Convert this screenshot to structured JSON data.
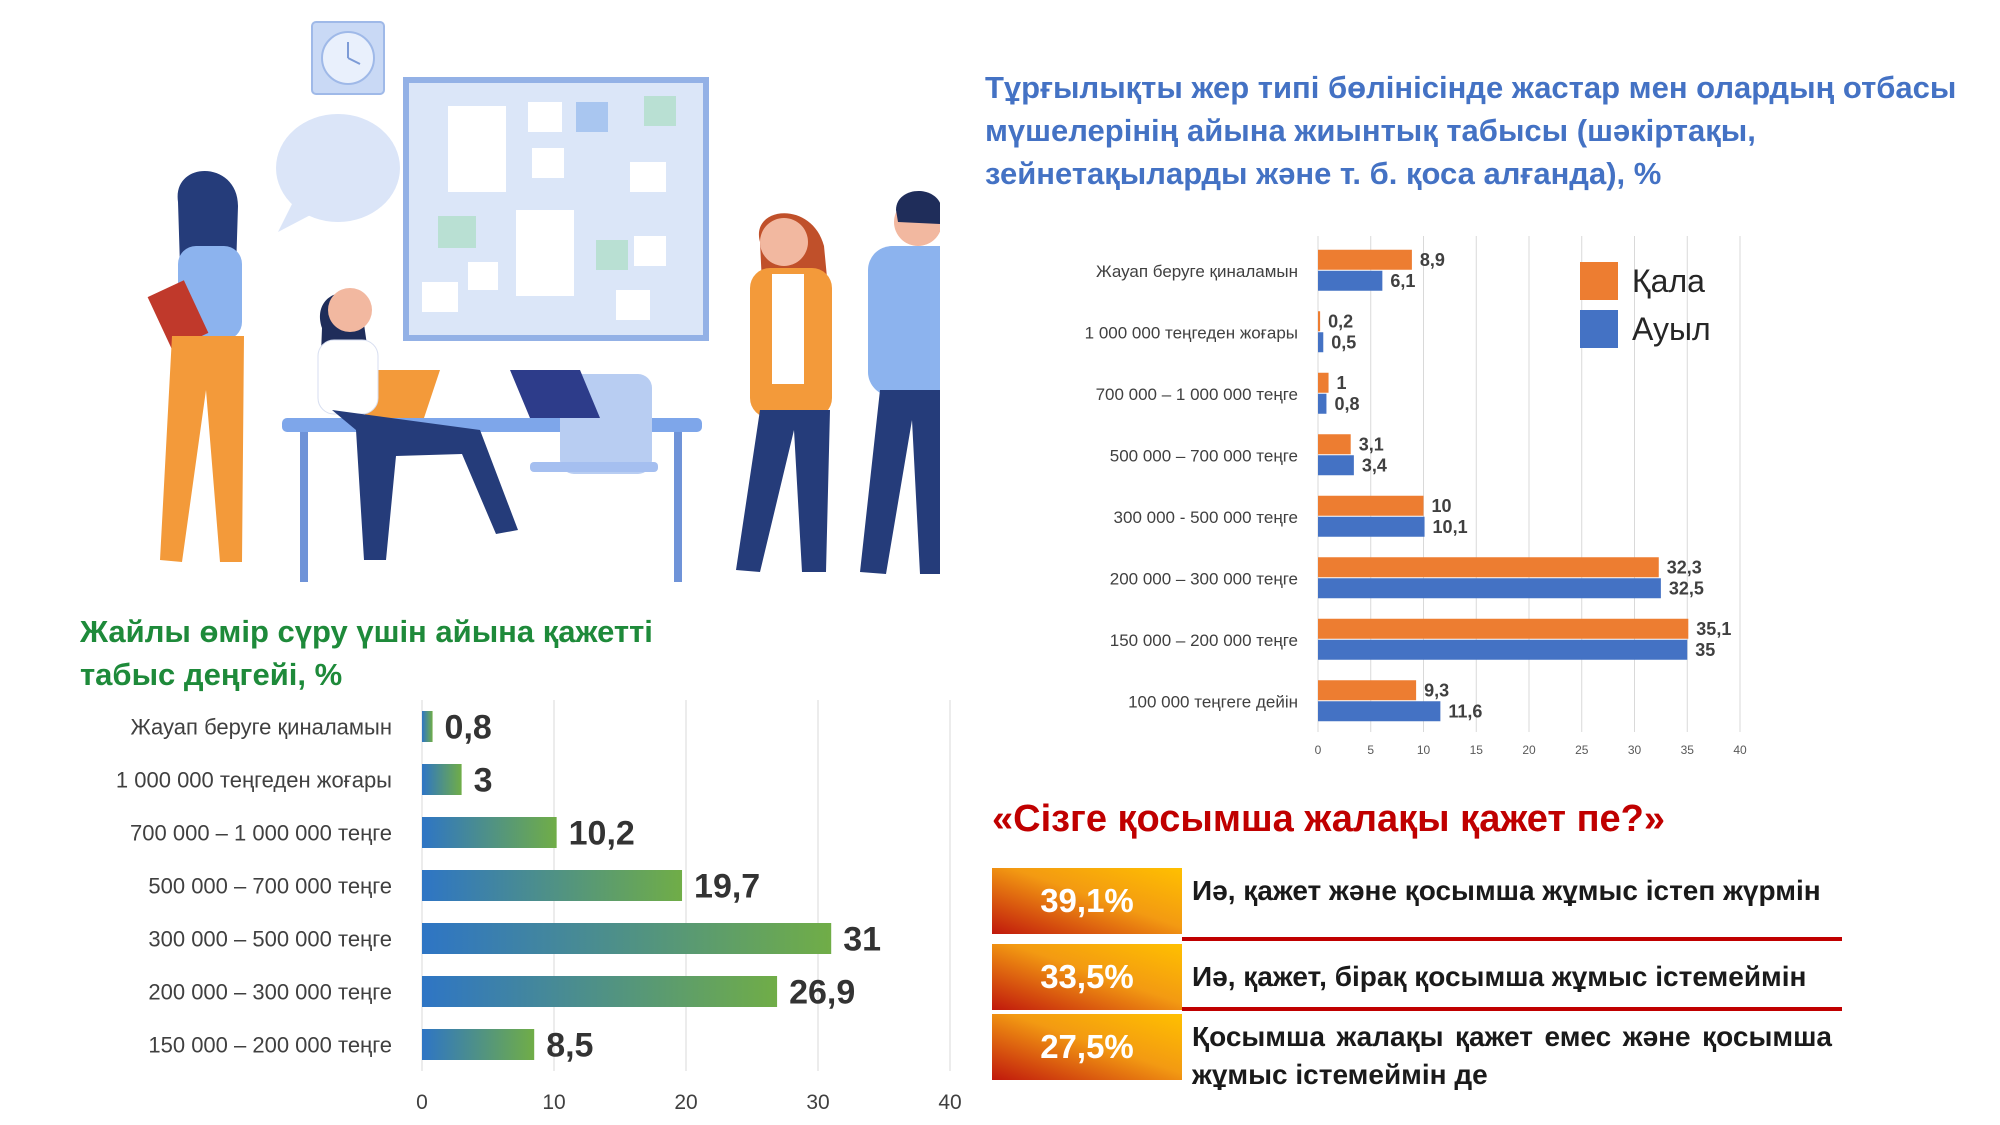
{
  "right_chart": {
    "title": "Тұрғылықты жер типі бөлінісінде жастар мен олардың отбасы мүшелерінің айына жиынтық табысы (шәкіртақы, зейнетақыларды және т. б. қоса алғанда), %",
    "chart_data": {
      "type": "bar",
      "orientation": "horizontal",
      "categories": [
        "Жауап беруге қиналамын",
        "1 000 000 теңгеден жоғары",
        "700 000 – 1 000 000 теңге",
        "500 000 – 700 000 теңге",
        "300 000 - 500 000 теңге",
        "200 000 – 300 000 теңге",
        "150 000 – 200 000 теңге",
        "100 000 теңгеге дейін"
      ],
      "series": [
        {
          "name": "Қала",
          "color": "#ed7d31",
          "values": [
            8.9,
            0.2,
            1,
            3.1,
            10,
            32.3,
            35.1,
            9.3
          ],
          "labels": [
            "8,9",
            "0,2",
            "1",
            "3,1",
            "10",
            "32,3",
            "35,1",
            "9,3"
          ]
        },
        {
          "name": "Ауыл",
          "color": "#4472c4",
          "values": [
            6.1,
            0.5,
            0.8,
            3.4,
            10.1,
            32.5,
            35,
            11.6
          ],
          "labels": [
            "6,1",
            "0,5",
            "0,8",
            "3,4",
            "10,1",
            "32,5",
            "35",
            "11,6"
          ]
        }
      ],
      "xlim": [
        0,
        40
      ],
      "xticks": [
        "0",
        "5",
        "10",
        "15",
        "20",
        "25",
        "30",
        "35",
        "40"
      ],
      "grid": true,
      "legend_position": "top-right"
    }
  },
  "left_chart": {
    "title": "Жайлы өмір сүру үшін айына қажетті табыс деңгейі, %",
    "chart_data": {
      "type": "bar",
      "orientation": "horizontal",
      "categories": [
        "Жауап беруге қиналамын",
        "1 000 000 теңгеден жоғары",
        "700 000 – 1 000 000 теңге",
        "500 000 – 700 000 теңге",
        "300 000 – 500 000 теңге",
        "200 000 – 300 000 теңге",
        "150 000 – 200 000 теңге"
      ],
      "values": [
        0.8,
        3,
        10.2,
        19.7,
        31,
        26.9,
        8.5
      ],
      "labels": [
        "0,8",
        "3",
        "10,2",
        "19,7",
        "31",
        "26,9",
        "8,5"
      ],
      "xlim": [
        0,
        40
      ],
      "xticks": [
        "0",
        "10",
        "20",
        "30",
        "40"
      ],
      "grid": true,
      "colors": {
        "start": "#2e75c5",
        "end": "#70ad47"
      }
    }
  },
  "question": {
    "title": "«Сізге қосымша жалақы қажет пе?»",
    "answers": [
      {
        "pct": "39,1%",
        "text": "Иә, қажет және қосымша жұмыс істеп жүрмін"
      },
      {
        "pct": "33,5%",
        "text": "Иә, қажет, бірақ қосымша жұмыс істемеймін"
      },
      {
        "pct": "27,5%",
        "text": "Қосымша жалақы қажет емес және қосымша жұмыс істемеймін де"
      }
    ]
  }
}
